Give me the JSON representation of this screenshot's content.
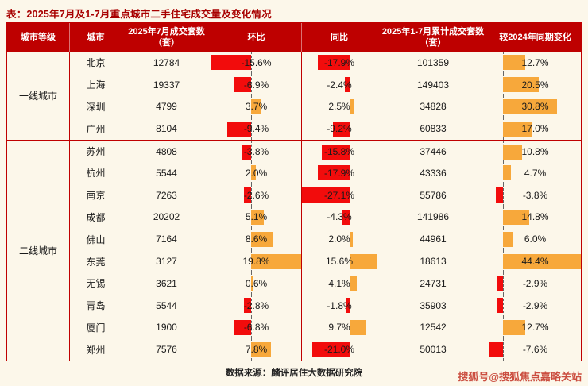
{
  "colors": {
    "page_bg": "#FCF7EA",
    "header_bg": "#BE0000",
    "table_border": "#C00000",
    "negative_bar": "#F20C0C",
    "positive_bar": "#F7A83B",
    "title_text": "#A80000",
    "watermark_text": "#C63C2E"
  },
  "footer": {
    "source": "数据来源：麟评居住大数据研究院",
    "watermark": "搜狐号@搜狐焦点嘉略关站"
  },
  "chart_data": {
    "type": "table",
    "title": "表：2025年7月及1-7月重点城市二手住宅成交量及变化情况",
    "columns": [
      "城市等级",
      "城市",
      "2025年7月成交套数（套）",
      "环比",
      "同比",
      "2025年1-7月累计成交套数（套）",
      "较2024年同期变化"
    ],
    "bar_columns_note": "环比/同比/较2024年同期变化 cells contain data bars: red = negative, orange = positive, dashed line = zero axis",
    "sections": [
      {
        "tier": "一线城市",
        "rows": [
          {
            "city": "北京",
            "jul": 12784,
            "mom": -15.6,
            "yoy": -17.9,
            "cum": 101359,
            "vs2024": 12.7
          },
          {
            "city": "上海",
            "jul": 19337,
            "mom": -6.9,
            "yoy": -2.4,
            "cum": 149403,
            "vs2024": 20.5
          },
          {
            "city": "深圳",
            "jul": 4799,
            "mom": 3.7,
            "yoy": 2.5,
            "cum": 34828,
            "vs2024": 30.8
          },
          {
            "city": "广州",
            "jul": 8104,
            "mom": -9.4,
            "yoy": -9.2,
            "cum": 60833,
            "vs2024": 17.0
          }
        ]
      },
      {
        "tier": "二线城市",
        "rows": [
          {
            "city": "苏州",
            "jul": 4808,
            "mom": -3.8,
            "yoy": -15.8,
            "cum": 37446,
            "vs2024": 10.8
          },
          {
            "city": "杭州",
            "jul": 5544,
            "mom": 2.0,
            "yoy": -17.9,
            "cum": 43336,
            "vs2024": 4.7
          },
          {
            "city": "南京",
            "jul": 7263,
            "mom": -2.6,
            "yoy": -27.1,
            "cum": 55786,
            "vs2024": -3.8
          },
          {
            "city": "成都",
            "jul": 20202,
            "mom": 5.1,
            "yoy": -4.3,
            "cum": 141986,
            "vs2024": 14.8
          },
          {
            "city": "佛山",
            "jul": 7164,
            "mom": 8.6,
            "yoy": 2.0,
            "cum": 44961,
            "vs2024": 6.0
          },
          {
            "city": "东莞",
            "jul": 3127,
            "mom": 19.8,
            "yoy": 15.6,
            "cum": 18613,
            "vs2024": 44.4
          },
          {
            "city": "无锡",
            "jul": 3621,
            "mom": 0.6,
            "yoy": 4.1,
            "cum": 24731,
            "vs2024": -2.9
          },
          {
            "city": "青岛",
            "jul": 5544,
            "mom": -2.8,
            "yoy": -1.8,
            "cum": 35903,
            "vs2024": -2.9
          },
          {
            "city": "厦门",
            "jul": 1900,
            "mom": -6.8,
            "yoy": 9.7,
            "cum": 12542,
            "vs2024": 12.7
          },
          {
            "city": "郑州",
            "jul": 7576,
            "mom": 7.8,
            "yoy": -21.0,
            "cum": 50013,
            "vs2024": -7.6
          }
        ]
      }
    ]
  }
}
